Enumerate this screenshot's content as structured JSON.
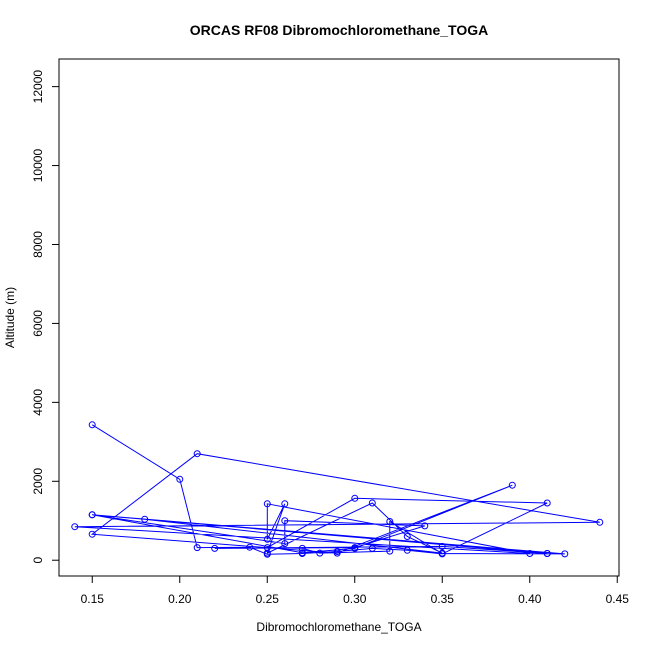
{
  "chart_data": {
    "type": "line",
    "title": "ORCAS RF08 Dibromochloromethane_TOGA",
    "xlabel": "Dibromochloromethane_TOGA",
    "ylabel": "Altitude (m)",
    "xlim": [
      0.131,
      0.451
    ],
    "ylim": [
      -400,
      12700
    ],
    "xticks": [
      0.15,
      0.2,
      0.25,
      0.3,
      0.35,
      0.4,
      0.45
    ],
    "xtick_labels": [
      "0.15",
      "0.20",
      "0.25",
      "0.30",
      "0.35",
      "0.40",
      "0.45"
    ],
    "yticks": [
      0,
      2000,
      4000,
      6000,
      8000,
      10000,
      12000
    ],
    "ytick_labels": [
      "0",
      "2000",
      "4000",
      "6000",
      "8000",
      "10000",
      "12000"
    ],
    "grid": false,
    "color": "#0000ff",
    "marker": "open-circle",
    "series": [
      {
        "x": [
          0.15,
          0.2,
          0.21,
          0.24,
          0.25,
          0.27,
          0.29,
          0.31,
          0.33,
          0.35,
          0.41,
          0.3,
          0.25,
          0.27,
          0.28,
          0.32,
          0.32,
          0.35,
          0.42,
          0.15,
          0.27,
          0.3,
          0.39,
          0.29,
          0.15,
          0.21,
          0.44,
          0.14,
          0.4,
          0.25,
          0.25,
          0.26,
          0.25,
          0.31,
          0.33,
          0.35,
          0.18,
          0.41,
          0.15,
          0.26,
          0.26,
          0.34,
          0.3,
          0.22,
          0.35,
          0.41
        ],
        "y": [
          3430,
          2050,
          320,
          330,
          150,
          170,
          220,
          300,
          250,
          160,
          1450,
          1570,
          320,
          300,
          180,
          230,
          980,
          170,
          160,
          1150,
          190,
          300,
          1900,
          180,
          660,
          2700,
          960,
          850,
          170,
          1430,
          530,
          1430,
          180,
          1450,
          600,
          180,
          1040,
          170,
          1150,
          420,
          1000,
          870,
          320,
          300,
          350,
          170
        ]
      }
    ]
  }
}
